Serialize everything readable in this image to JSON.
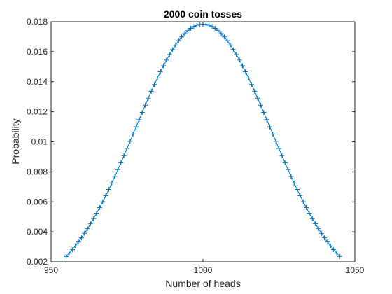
{
  "chart_data": {
    "type": "line",
    "title": "2000 coin tosses",
    "xlabel": "Number of heads",
    "ylabel": "Probability",
    "xlim": [
      950,
      1050
    ],
    "ylim": [
      0.002,
      0.018
    ],
    "xticks": [
      950,
      1000,
      1050
    ],
    "xtick_labels": [
      "950",
      "1000",
      "1050"
    ],
    "yticks": [
      0.002,
      0.004,
      0.006,
      0.008,
      0.01,
      0.012,
      0.014,
      0.016,
      0.018
    ],
    "ytick_labels": [
      "0.002",
      "0.004",
      "0.006",
      "0.008",
      "0.01",
      "0.012",
      "0.014",
      "0.016",
      "0.018"
    ],
    "grid": false,
    "box": true,
    "series": [
      {
        "marker": "+",
        "line_color": "#0072BD",
        "x_start": 955,
        "x_end": 1045,
        "x_step": 1,
        "distribution": {
          "n": 2000,
          "p": 0.5
        }
      }
    ]
  }
}
